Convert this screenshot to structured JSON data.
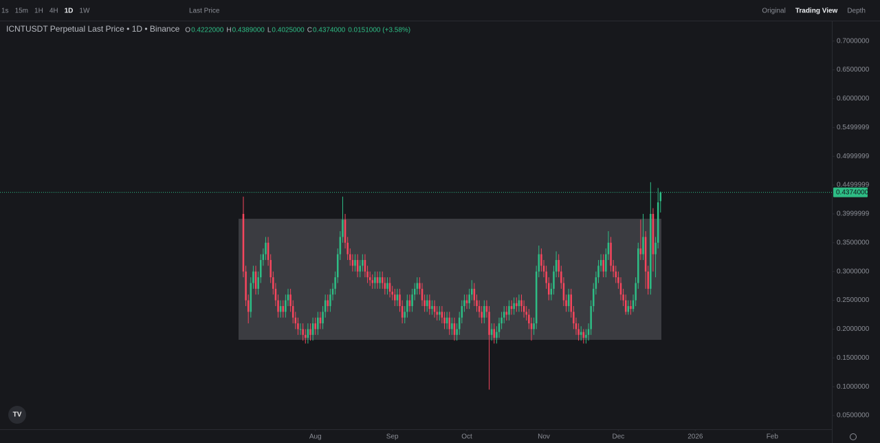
{
  "toolbar": {
    "intervals": [
      "1s",
      "15m",
      "1H",
      "4H",
      "1D",
      "1W"
    ],
    "price_mode": "Last Price",
    "views": [
      "Original",
      "Trading View",
      "Depth"
    ]
  },
  "chart_data": {
    "type": "candlestick",
    "title": "ICNTUSDT Perpetual Last Price • 1D • Binance",
    "legend": [
      {
        "key": "O",
        "value": "0.4222000"
      },
      {
        "key": "H",
        "value": "0.4389000"
      },
      {
        "key": "L",
        "value": "0.4025000"
      },
      {
        "key": "C",
        "value": "0.4374000"
      }
    ],
    "change": "0.0151000 (+3.58%)",
    "up_color": "#2ebd85",
    "down_color": "#f6465d",
    "last_price": {
      "value": 0.4374,
      "label": "0.4374000"
    },
    "xlim": [
      -98,
      237
    ],
    "xticks": [
      {
        "value": 29,
        "label": "Aug"
      },
      {
        "value": 60,
        "label": "Sep"
      },
      {
        "value": 90,
        "label": "Oct"
      },
      {
        "value": 121,
        "label": "Nov"
      },
      {
        "value": 151,
        "label": "Dec"
      },
      {
        "value": 182,
        "label": "2026"
      },
      {
        "value": 213,
        "label": "Feb"
      }
    ],
    "ylim": [
      0.0262,
      0.7343
    ],
    "yticks": [
      {
        "value": 0.7,
        "label": "0.7000000"
      },
      {
        "value": 0.65,
        "label": "0.6500000"
      },
      {
        "value": 0.6,
        "label": "0.6000000"
      },
      {
        "value": 0.55,
        "label": "0.5499999"
      },
      {
        "value": 0.5,
        "label": "0.4999999"
      },
      {
        "value": 0.45,
        "label": "0.4499999"
      },
      {
        "value": 0.4,
        "label": "0.3999999"
      },
      {
        "value": 0.35,
        "label": "0.3500000"
      },
      {
        "value": 0.3,
        "label": "0.3000000"
      },
      {
        "value": 0.25,
        "label": "0.2500000"
      },
      {
        "value": 0.2,
        "label": "0.2000000"
      },
      {
        "value": 0.15,
        "label": "0.1500000"
      },
      {
        "value": 0.1,
        "label": "0.1000000"
      },
      {
        "value": 0.05,
        "label": "0.0500000"
      }
    ],
    "candles": [
      [
        0.4,
        0.43,
        0.29,
        0.3
      ],
      [
        0.3,
        0.31,
        0.24,
        0.25
      ],
      [
        0.25,
        0.26,
        0.21,
        0.23
      ],
      [
        0.23,
        0.29,
        0.22,
        0.28
      ],
      [
        0.28,
        0.31,
        0.27,
        0.3
      ],
      [
        0.3,
        0.31,
        0.26,
        0.27
      ],
      [
        0.27,
        0.3,
        0.26,
        0.29
      ],
      [
        0.29,
        0.33,
        0.28,
        0.32
      ],
      [
        0.32,
        0.34,
        0.31,
        0.33
      ],
      [
        0.33,
        0.36,
        0.32,
        0.35
      ],
      [
        0.35,
        0.36,
        0.31,
        0.32
      ],
      [
        0.32,
        0.33,
        0.28,
        0.29
      ],
      [
        0.29,
        0.3,
        0.26,
        0.27
      ],
      [
        0.27,
        0.28,
        0.24,
        0.25
      ],
      [
        0.25,
        0.26,
        0.22,
        0.23
      ],
      [
        0.23,
        0.25,
        0.22,
        0.24
      ],
      [
        0.24,
        0.25,
        0.22,
        0.23
      ],
      [
        0.23,
        0.26,
        0.22,
        0.25
      ],
      [
        0.25,
        0.27,
        0.24,
        0.26
      ],
      [
        0.26,
        0.27,
        0.23,
        0.24
      ],
      [
        0.24,
        0.25,
        0.21,
        0.22
      ],
      [
        0.22,
        0.23,
        0.2,
        0.21
      ],
      [
        0.21,
        0.22,
        0.19,
        0.2
      ],
      [
        0.2,
        0.21,
        0.19,
        0.2
      ],
      [
        0.2,
        0.21,
        0.18,
        0.19
      ],
      [
        0.19,
        0.2,
        0.175,
        0.185
      ],
      [
        0.185,
        0.21,
        0.175,
        0.2
      ],
      [
        0.2,
        0.21,
        0.18,
        0.19
      ],
      [
        0.19,
        0.22,
        0.18,
        0.21
      ],
      [
        0.21,
        0.22,
        0.19,
        0.2
      ],
      [
        0.2,
        0.23,
        0.19,
        0.22
      ],
      [
        0.22,
        0.23,
        0.2,
        0.21
      ],
      [
        0.21,
        0.24,
        0.2,
        0.23
      ],
      [
        0.23,
        0.26,
        0.22,
        0.25
      ],
      [
        0.25,
        0.26,
        0.23,
        0.24
      ],
      [
        0.24,
        0.27,
        0.23,
        0.26
      ],
      [
        0.26,
        0.28,
        0.25,
        0.27
      ],
      [
        0.27,
        0.3,
        0.26,
        0.29
      ],
      [
        0.29,
        0.34,
        0.28,
        0.33
      ],
      [
        0.33,
        0.37,
        0.32,
        0.36
      ],
      [
        0.36,
        0.43,
        0.35,
        0.39
      ],
      [
        0.39,
        0.4,
        0.34,
        0.35
      ],
      [
        0.35,
        0.36,
        0.32,
        0.33
      ],
      [
        0.33,
        0.34,
        0.31,
        0.32
      ],
      [
        0.32,
        0.33,
        0.3,
        0.31
      ],
      [
        0.31,
        0.33,
        0.3,
        0.32
      ],
      [
        0.32,
        0.33,
        0.29,
        0.3
      ],
      [
        0.3,
        0.32,
        0.29,
        0.31
      ],
      [
        0.31,
        0.33,
        0.3,
        0.32
      ],
      [
        0.32,
        0.33,
        0.29,
        0.3
      ],
      [
        0.3,
        0.31,
        0.28,
        0.29
      ],
      [
        0.29,
        0.3,
        0.275,
        0.285
      ],
      [
        0.285,
        0.295,
        0.27,
        0.28
      ],
      [
        0.28,
        0.3,
        0.27,
        0.29
      ],
      [
        0.29,
        0.3,
        0.27,
        0.28
      ],
      [
        0.28,
        0.3,
        0.27,
        0.29
      ],
      [
        0.29,
        0.3,
        0.27,
        0.28
      ],
      [
        0.28,
        0.29,
        0.26,
        0.27
      ],
      [
        0.27,
        0.29,
        0.26,
        0.28
      ],
      [
        0.28,
        0.29,
        0.255,
        0.265
      ],
      [
        0.265,
        0.275,
        0.25,
        0.26
      ],
      [
        0.26,
        0.27,
        0.24,
        0.25
      ],
      [
        0.25,
        0.27,
        0.24,
        0.26
      ],
      [
        0.26,
        0.27,
        0.23,
        0.24
      ],
      [
        0.24,
        0.25,
        0.21,
        0.22
      ],
      [
        0.22,
        0.24,
        0.21,
        0.23
      ],
      [
        0.23,
        0.26,
        0.22,
        0.25
      ],
      [
        0.25,
        0.26,
        0.23,
        0.24
      ],
      [
        0.24,
        0.27,
        0.23,
        0.26
      ],
      [
        0.26,
        0.28,
        0.25,
        0.27
      ],
      [
        0.27,
        0.29,
        0.26,
        0.28
      ],
      [
        0.28,
        0.29,
        0.26,
        0.27
      ],
      [
        0.27,
        0.28,
        0.24,
        0.25
      ],
      [
        0.25,
        0.26,
        0.23,
        0.24
      ],
      [
        0.24,
        0.26,
        0.23,
        0.25
      ],
      [
        0.25,
        0.26,
        0.225,
        0.235
      ],
      [
        0.235,
        0.25,
        0.225,
        0.24
      ],
      [
        0.24,
        0.25,
        0.22,
        0.23
      ],
      [
        0.23,
        0.24,
        0.215,
        0.225
      ],
      [
        0.225,
        0.24,
        0.215,
        0.23
      ],
      [
        0.23,
        0.24,
        0.21,
        0.22
      ],
      [
        0.22,
        0.23,
        0.2,
        0.21
      ],
      [
        0.21,
        0.23,
        0.2,
        0.22
      ],
      [
        0.22,
        0.23,
        0.19,
        0.2
      ],
      [
        0.2,
        0.22,
        0.19,
        0.21
      ],
      [
        0.21,
        0.22,
        0.18,
        0.19
      ],
      [
        0.19,
        0.21,
        0.18,
        0.2
      ],
      [
        0.2,
        0.23,
        0.19,
        0.22
      ],
      [
        0.22,
        0.25,
        0.21,
        0.24
      ],
      [
        0.24,
        0.26,
        0.23,
        0.25
      ],
      [
        0.25,
        0.26,
        0.235,
        0.245
      ],
      [
        0.245,
        0.27,
        0.235,
        0.26
      ],
      [
        0.26,
        0.285,
        0.25,
        0.27
      ],
      [
        0.27,
        0.28,
        0.24,
        0.25
      ],
      [
        0.25,
        0.26,
        0.23,
        0.24
      ],
      [
        0.24,
        0.25,
        0.22,
        0.23
      ],
      [
        0.23,
        0.24,
        0.21,
        0.22
      ],
      [
        0.22,
        0.25,
        0.21,
        0.24
      ],
      [
        0.24,
        0.25,
        0.22,
        0.23
      ],
      [
        0.23,
        0.24,
        0.095,
        0.19
      ],
      [
        0.19,
        0.21,
        0.18,
        0.2
      ],
      [
        0.2,
        0.21,
        0.175,
        0.185
      ],
      [
        0.185,
        0.205,
        0.175,
        0.195
      ],
      [
        0.195,
        0.22,
        0.185,
        0.21
      ],
      [
        0.21,
        0.23,
        0.2,
        0.22
      ],
      [
        0.22,
        0.24,
        0.21,
        0.23
      ],
      [
        0.23,
        0.24,
        0.215,
        0.225
      ],
      [
        0.225,
        0.25,
        0.215,
        0.24
      ],
      [
        0.24,
        0.25,
        0.225,
        0.235
      ],
      [
        0.235,
        0.255,
        0.225,
        0.245
      ],
      [
        0.245,
        0.255,
        0.23,
        0.24
      ],
      [
        0.24,
        0.26,
        0.23,
        0.25
      ],
      [
        0.25,
        0.26,
        0.23,
        0.24
      ],
      [
        0.24,
        0.25,
        0.22,
        0.23
      ],
      [
        0.23,
        0.24,
        0.215,
        0.225
      ],
      [
        0.225,
        0.235,
        0.2,
        0.21
      ],
      [
        0.21,
        0.22,
        0.18,
        0.2
      ],
      [
        0.2,
        0.22,
        0.19,
        0.21
      ],
      [
        0.21,
        0.31,
        0.2,
        0.3
      ],
      [
        0.3,
        0.345,
        0.29,
        0.33
      ],
      [
        0.33,
        0.34,
        0.3,
        0.31
      ],
      [
        0.31,
        0.32,
        0.29,
        0.3
      ],
      [
        0.3,
        0.31,
        0.27,
        0.28
      ],
      [
        0.28,
        0.29,
        0.25,
        0.26
      ],
      [
        0.26,
        0.28,
        0.25,
        0.27
      ],
      [
        0.27,
        0.31,
        0.26,
        0.3
      ],
      [
        0.3,
        0.335,
        0.29,
        0.32
      ],
      [
        0.32,
        0.33,
        0.29,
        0.3
      ],
      [
        0.3,
        0.31,
        0.27,
        0.28
      ],
      [
        0.28,
        0.29,
        0.24,
        0.25
      ],
      [
        0.25,
        0.26,
        0.23,
        0.24
      ],
      [
        0.24,
        0.27,
        0.23,
        0.26
      ],
      [
        0.26,
        0.27,
        0.22,
        0.23
      ],
      [
        0.23,
        0.24,
        0.2,
        0.21
      ],
      [
        0.21,
        0.22,
        0.19,
        0.2
      ],
      [
        0.2,
        0.21,
        0.18,
        0.19
      ],
      [
        0.19,
        0.205,
        0.18,
        0.195
      ],
      [
        0.195,
        0.2,
        0.175,
        0.185
      ],
      [
        0.185,
        0.2,
        0.175,
        0.19
      ],
      [
        0.19,
        0.21,
        0.18,
        0.2
      ],
      [
        0.2,
        0.25,
        0.19,
        0.24
      ],
      [
        0.24,
        0.28,
        0.23,
        0.27
      ],
      [
        0.27,
        0.3,
        0.26,
        0.29
      ],
      [
        0.29,
        0.32,
        0.28,
        0.31
      ],
      [
        0.31,
        0.33,
        0.3,
        0.32
      ],
      [
        0.32,
        0.33,
        0.29,
        0.3
      ],
      [
        0.3,
        0.34,
        0.29,
        0.33
      ],
      [
        0.33,
        0.37,
        0.32,
        0.35
      ],
      [
        0.35,
        0.36,
        0.3,
        0.31
      ],
      [
        0.31,
        0.32,
        0.29,
        0.3
      ],
      [
        0.3,
        0.31,
        0.28,
        0.29
      ],
      [
        0.29,
        0.3,
        0.27,
        0.28
      ],
      [
        0.28,
        0.29,
        0.25,
        0.26
      ],
      [
        0.26,
        0.27,
        0.24,
        0.25
      ],
      [
        0.25,
        0.26,
        0.225,
        0.23
      ],
      [
        0.23,
        0.25,
        0.225,
        0.24
      ],
      [
        0.24,
        0.25,
        0.225,
        0.235
      ],
      [
        0.235,
        0.26,
        0.23,
        0.25
      ],
      [
        0.25,
        0.29,
        0.24,
        0.28
      ],
      [
        0.28,
        0.35,
        0.27,
        0.34
      ],
      [
        0.34,
        0.39,
        0.32,
        0.33
      ],
      [
        0.33,
        0.4,
        0.32,
        0.36
      ],
      [
        0.36,
        0.37,
        0.27,
        0.3
      ],
      [
        0.3,
        0.31,
        0.26,
        0.27
      ],
      [
        0.27,
        0.455,
        0.26,
        0.4
      ],
      [
        0.4,
        0.41,
        0.3,
        0.33
      ],
      [
        0.33,
        0.36,
        0.29,
        0.35
      ],
      [
        0.35,
        0.445,
        0.34,
        0.42
      ],
      [
        0.4222,
        0.4389,
        0.4025,
        0.4374
      ]
    ]
  }
}
